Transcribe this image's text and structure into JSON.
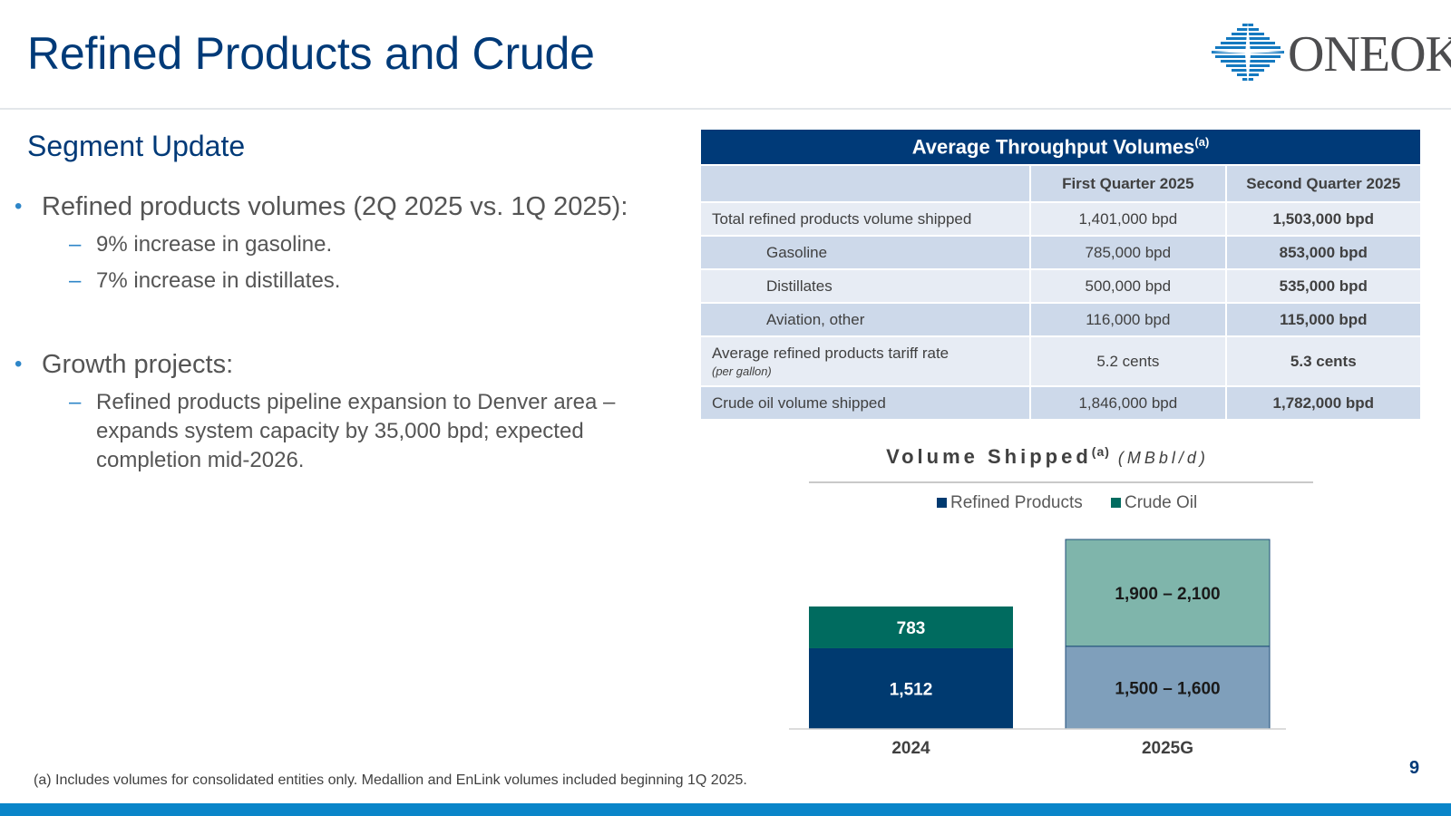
{
  "header": {
    "title": "Refined Products and Crude",
    "logo_text": "ONEOK"
  },
  "segment": {
    "title": "Segment Update",
    "bullets": [
      {
        "text": "Refined products volumes (2Q 2025 vs. 1Q 2025):",
        "sub": [
          "9% increase in gasoline.",
          "7% increase in distillates."
        ]
      },
      {
        "text": "Growth projects:",
        "sub": [
          "Refined products pipeline expansion to Denver area – expands system capacity by 35,000 bpd; expected completion mid-2026."
        ]
      }
    ]
  },
  "table": {
    "title": "Average Throughput Volumes",
    "title_sup": "(a)",
    "columns": [
      "",
      "First Quarter 2025",
      "Second Quarter 2025"
    ],
    "rows": [
      {
        "label": "Total refined products volume shipped",
        "q1": "1,401,000 bpd",
        "q2": "1,503,000 bpd"
      },
      {
        "label": "Gasoline",
        "q1": "785,000 bpd",
        "q2": "853,000 bpd"
      },
      {
        "label": "Distillates",
        "q1": "500,000 bpd",
        "q2": "535,000 bpd"
      },
      {
        "label": "Aviation, other",
        "q1": "116,000 bpd",
        "q2": "115,000 bpd"
      },
      {
        "label": "Average refined products tariff rate",
        "sublabel": "(per gallon)",
        "q1": "5.2 cents",
        "q2": "5.3 cents"
      },
      {
        "label": "Crude oil volume shipped",
        "q1": "1,846,000 bpd",
        "q2": "1,782,000 bpd"
      }
    ]
  },
  "chart_data": {
    "type": "bar",
    "stacked": true,
    "title": "Volume Shipped",
    "title_sup": "(a)",
    "unit": "(MBbl/d)",
    "categories": [
      "2024",
      "2025G"
    ],
    "series": [
      {
        "name": "Refined Products",
        "values": [
          1512,
          1550
        ],
        "labels": [
          "1,512",
          "1,500 – 1,600"
        ],
        "colors": [
          "#003a70",
          "#7f9fbb"
        ]
      },
      {
        "name": "Crude Oil",
        "values": [
          783,
          2000
        ],
        "labels": [
          "783",
          "1,900 – 2,100"
        ],
        "colors": [
          "#006b5f",
          "#7fb5ab"
        ]
      }
    ],
    "legend": "top",
    "colors": {
      "refined": "#003a70",
      "crude": "#006b5f"
    }
  },
  "footnote": "(a)  Includes volumes for consolidated entities only. Medallion and EnLink volumes included beginning 1Q 2025.",
  "page_number": "9"
}
